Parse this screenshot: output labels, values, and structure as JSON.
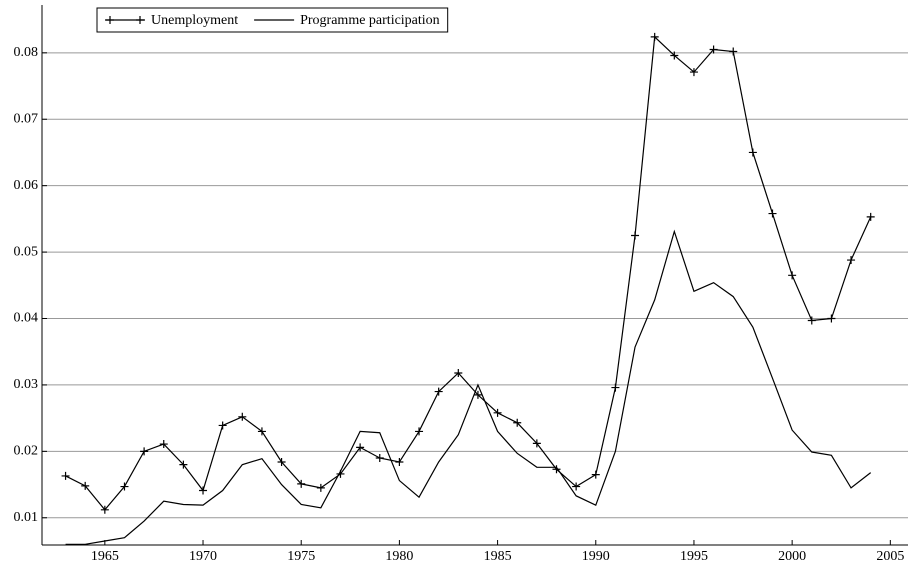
{
  "chart_data": {
    "type": "line",
    "x": [
      1963,
      1964,
      1965,
      1966,
      1967,
      1968,
      1969,
      1970,
      1971,
      1972,
      1973,
      1974,
      1975,
      1976,
      1977,
      1978,
      1979,
      1980,
      1981,
      1982,
      1983,
      1984,
      1985,
      1986,
      1987,
      1988,
      1989,
      1990,
      1991,
      1992,
      1993,
      1994,
      1995,
      1996,
      1997,
      1998,
      1999,
      2000,
      2001,
      2002,
      2003,
      2004
    ],
    "series": [
      {
        "name": "Unemployment",
        "color": "#000000",
        "marker": "plus",
        "values": [
          0.0163,
          0.0148,
          0.0112,
          0.0147,
          0.02,
          0.0211,
          0.018,
          0.0141,
          0.0239,
          0.0252,
          0.023,
          0.0184,
          0.0151,
          0.0145,
          0.0166,
          0.0206,
          0.019,
          0.0184,
          0.023,
          0.029,
          0.0318,
          0.0285,
          0.0258,
          0.0243,
          0.0212,
          0.0173,
          0.0147,
          0.0165,
          0.0296,
          0.0525,
          0.0824,
          0.0796,
          0.0771,
          0.0805,
          0.0802,
          0.065,
          0.0558,
          0.0465,
          0.0397,
          0.04,
          0.0488,
          0.0553
        ]
      },
      {
        "name": "Programme participation",
        "color": "#000000",
        "values": [
          0.006,
          0.006,
          0.0065,
          0.007,
          0.0095,
          0.0125,
          0.012,
          0.0119,
          0.0141,
          0.018,
          0.0189,
          0.015,
          0.012,
          0.0115,
          0.017,
          0.023,
          0.0228,
          0.0156,
          0.0131,
          0.0184,
          0.0225,
          0.03,
          0.023,
          0.0197,
          0.0176,
          0.0176,
          0.0133,
          0.0119,
          0.02,
          0.0357,
          0.0428,
          0.0531,
          0.0441,
          0.0454,
          0.0433,
          0.0387,
          0.031,
          0.0232,
          0.0199,
          0.0194,
          0.0145,
          0.0168
        ]
      }
    ],
    "xlim": [
      1961.8,
      2005.9
    ],
    "xticks": [
      1965,
      1970,
      1975,
      1980,
      1985,
      1990,
      1995,
      2000,
      2005
    ],
    "ylim": [
      0.0059,
      0.0872
    ],
    "yticks": [
      0.01,
      0.02,
      0.03,
      0.04,
      0.05,
      0.06,
      0.07,
      0.08
    ],
    "grid": true,
    "legend": "top-left"
  }
}
